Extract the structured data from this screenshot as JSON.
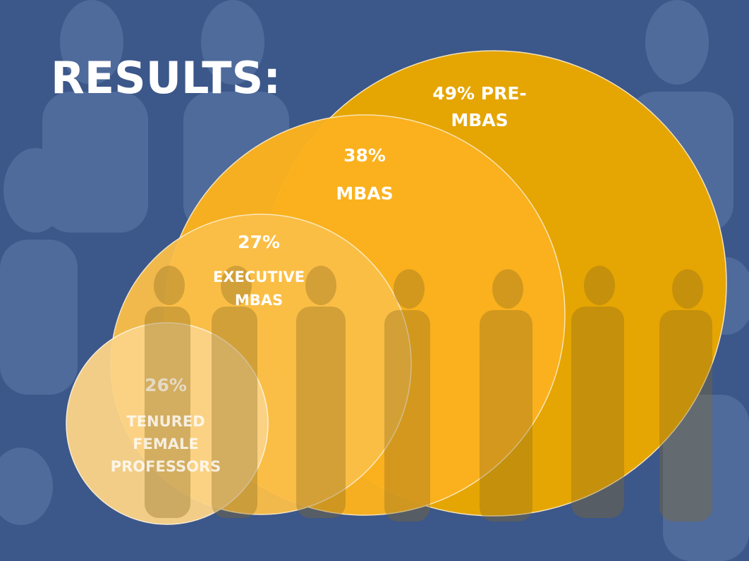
{
  "title": "RESULTS:",
  "circles": [
    {
      "lines": [
        "49% PRE-",
        "MBAS"
      ]
    },
    {
      "lines": [
        "38%",
        "MBAS"
      ]
    },
    {
      "lines": [
        "27%",
        "EXECUTIVE",
        "MBAS"
      ]
    },
    {
      "lines": [
        "26%",
        "TENURED",
        "FEMALE",
        "PROFESSORS"
      ]
    }
  ]
}
